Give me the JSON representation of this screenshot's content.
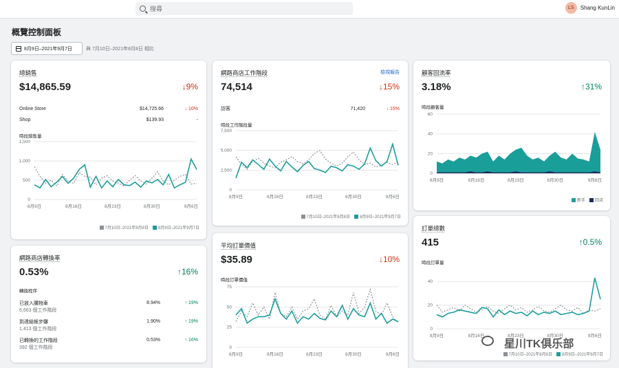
{
  "search": {
    "placeholder": "搜尋"
  },
  "user": {
    "initials": "LS",
    "name": "Shang KunLin"
  },
  "page": {
    "title": "概覽控制面板",
    "date_range": "8月9日–2021年9月7日",
    "compare_text": "與 7月10日–2021年8月8日 相比"
  },
  "colors": {
    "current": "#1a9e9a",
    "previous": "#8c9196",
    "accent_secondary": "#1e2b5c",
    "down": "#d72c0d",
    "up": "#008060"
  },
  "legend": {
    "prev": "7月10日–2021年8月8日",
    "curr": "8月9日–2021年9月7日"
  },
  "x_ticks": [
    "8月9日",
    "8月16日",
    "8月23日",
    "8月30日",
    "9月6日"
  ],
  "total_sales": {
    "title": "總銷售",
    "value": "$14,865.59",
    "change": "↓9%",
    "rows": [
      {
        "name": "Online Store",
        "value": "$14,725.66",
        "change": "↓ 10%"
      },
      {
        "name": "Shop",
        "value": "$139.93",
        "change": "-"
      }
    ],
    "chart_label": "時段銷售量",
    "chart_data": {
      "type": "line",
      "y_ticks": [
        "1,500",
        "1,000",
        "500",
        "0"
      ],
      "ylim": [
        0,
        1500
      ],
      "series": [
        {
          "name": "8月9日–2021年9月7日",
          "values": [
            380,
            300,
            520,
            330,
            450,
            600,
            420,
            550,
            780,
            900,
            320,
            600,
            300,
            480,
            330,
            520,
            380,
            360,
            450,
            320,
            480,
            430,
            520,
            380,
            650,
            300,
            380,
            450,
            1050,
            780
          ]
        },
        {
          "name": "7月10日–2021年8月8日",
          "values": [
            850,
            600,
            420,
            500,
            350,
            650,
            480,
            420,
            700,
            600,
            580,
            380,
            550,
            620,
            480,
            420,
            350,
            500,
            620,
            480,
            400,
            550,
            720,
            480,
            380,
            500,
            600,
            650,
            400,
            420
          ]
        }
      ]
    }
  },
  "sessions": {
    "title": "網路商店工作階段",
    "link": "檢視報告",
    "value": "74,514",
    "change": "↓15%",
    "rows": [
      {
        "name": "訪客",
        "value": "71,420",
        "change": "↓ 15%"
      }
    ],
    "chart_label": "時段工作階段量",
    "chart_data": {
      "type": "line",
      "y_ticks": [
        "7,500",
        "5,000",
        "2,500",
        "0"
      ],
      "ylim": [
        0,
        7500
      ],
      "series": [
        {
          "name": "8月9日–2021年9月7日",
          "values": [
            1500,
            3500,
            2800,
            3800,
            3200,
            2600,
            3900,
            3000,
            2400,
            3600,
            2900,
            2300,
            3100,
            3600,
            2700,
            2500,
            2200,
            3000,
            2800,
            2400,
            3200,
            3000,
            2600,
            3300,
            5300,
            3700,
            3000,
            3600,
            5800,
            3100
          ]
        },
        {
          "name": "7月10日–2021年8月8日",
          "values": [
            4200,
            3200,
            2600,
            3600,
            4000,
            3400,
            3000,
            2800,
            3500,
            3800,
            4200,
            3600,
            3300,
            3800,
            4600,
            5000,
            3900,
            3400,
            3000,
            3400,
            4200,
            4800,
            3800,
            3200,
            3400,
            2900,
            3100,
            3500,
            3200,
            3600
          ]
        }
      ]
    }
  },
  "returning": {
    "title": "顧客回流率",
    "value": "3.18%",
    "change": "↑31%",
    "chart_label": "時段顧客量",
    "legend_new": "新手",
    "legend_returning": "回流",
    "chart_data": {
      "type": "area",
      "y_ticks": [
        "60",
        "40",
        "20",
        "0"
      ],
      "ylim": [
        0,
        60
      ],
      "series": [
        {
          "name": "新手",
          "values": [
            12,
            10,
            14,
            12,
            16,
            14,
            18,
            16,
            20,
            22,
            12,
            18,
            14,
            20,
            24,
            26,
            18,
            14,
            16,
            12,
            18,
            22,
            16,
            14,
            20,
            15,
            14,
            12,
            42,
            24
          ]
        },
        {
          "name": "回流",
          "values": [
            1,
            1,
            1,
            1,
            1,
            1,
            2,
            1,
            1,
            2,
            1,
            1,
            1,
            1,
            2,
            1,
            1,
            1,
            1,
            1,
            2,
            1,
            1,
            1,
            1,
            1,
            1,
            1,
            2,
            1
          ]
        }
      ]
    }
  },
  "conversion": {
    "title": "網路商店轉換率",
    "value": "0.53%",
    "change": "↑16%",
    "section_label": "轉換程序",
    "rows": [
      {
        "name": "已放入購物車",
        "sub": "6,663 個工作階段",
        "value": "8.94%",
        "change": "↑ 19%"
      },
      {
        "name": "到達結帳步驟",
        "sub": "1,413 個工作階段",
        "value": "1.90%",
        "change": "↑ 19%"
      },
      {
        "name": "已轉換的工作階段",
        "sub": "392 個工作階段",
        "value": "0.53%",
        "change": "↑ 16%"
      }
    ]
  },
  "aov": {
    "title": "平均訂單價值",
    "value": "$35.89",
    "change": "↓10%",
    "chart_label": "時段訂單價值",
    "chart_data": {
      "type": "line",
      "y_ticks": [
        "75",
        "50",
        "25",
        "0"
      ],
      "ylim": [
        0,
        75
      ],
      "series": [
        {
          "name": "8月9日–2021年9月7日",
          "values": [
            40,
            48,
            30,
            35,
            38,
            38,
            40,
            60,
            42,
            35,
            45,
            30,
            38,
            35,
            42,
            36,
            34,
            45,
            38,
            52,
            35,
            48,
            40,
            38,
            55,
            35,
            42,
            30,
            35,
            32
          ]
        },
        {
          "name": "7月10日–2021年8月8日",
          "values": [
            32,
            45,
            38,
            55,
            40,
            50,
            35,
            68,
            42,
            38,
            50,
            35,
            45,
            48,
            60,
            40,
            35,
            52,
            38,
            45,
            40,
            68,
            42,
            50,
            72,
            45,
            40,
            55,
            38,
            30
          ]
        }
      ]
    }
  },
  "orders": {
    "title": "訂單總數",
    "value": "415",
    "change": "↑0.5%",
    "chart_label": "時段訂單量",
    "chart_data": {
      "type": "line",
      "y_ticks": [
        "40",
        "20",
        "0"
      ],
      "ylim": [
        0,
        50
      ],
      "series": [
        {
          "name": "8月9日–2021年9月7日",
          "values": [
            12,
            10,
            13,
            14,
            16,
            15,
            14,
            13,
            18,
            17,
            10,
            16,
            12,
            15,
            13,
            14,
            11,
            15,
            12,
            14,
            13,
            15,
            12,
            13,
            14,
            12,
            13,
            15,
            43,
            25
          ]
        },
        {
          "name": "7月10日–2021年8月8日",
          "values": [
            20,
            14,
            16,
            18,
            15,
            20,
            17,
            14,
            16,
            19,
            15,
            13,
            17,
            20,
            16,
            18,
            14,
            16,
            19,
            15,
            14,
            17,
            20,
            16,
            15,
            18,
            13,
            16,
            15,
            17
          ]
        }
      ]
    }
  },
  "watermark": "星川TK俱乐部"
}
